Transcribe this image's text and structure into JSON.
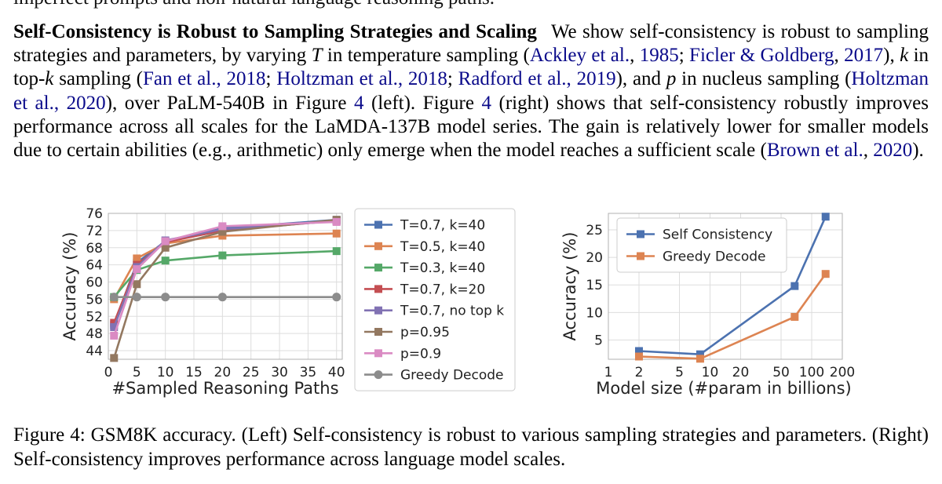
{
  "cut_line": "imperfect prompts and non-natural language reasoning paths.",
  "paragraph": {
    "title": "Self-Consistency is Robust to Sampling Strategies and Scaling",
    "t1": "We show self-consistency is robust to sampling strategies and parameters, by varying ",
    "v_T": "T",
    "t2": " in temperature sampling (",
    "c_ackley": "Ackley et al.",
    "s1": ", ",
    "c_1985": "1985",
    "s2": "; ",
    "c_ficler": "Ficler & Goldberg",
    "s3": ", ",
    "c_2017": "2017",
    "t3": "), ",
    "v_k": "k",
    "t4": " in top-",
    "v_k2": "k",
    "t5": " sampling (",
    "c_fan": "Fan et al., 2018",
    "s4": "; ",
    "c_holtz18": "Holtzman et al., 2018",
    "s5": "; ",
    "c_radford": "Radford et al., 2019",
    "t6": "), and ",
    "v_p": "p",
    "t7": " in nucleus sampling (",
    "c_holtz20": "Holtzman et al., 2020",
    "t8": "), over PaLM-540B in Figure ",
    "c_fig4a": "4",
    "t9": " (left). Figure ",
    "c_fig4b": "4",
    "t10": " (right) shows that self-consistency robustly improves performance across all scales for the LaMDA-137B model series. The gain is relatively lower for smaller models due to certain abilities (e.g., arithmetic) only emerge when the model reaches a sufficient scale (",
    "c_brown": "Brown et al.",
    "s6": ", ",
    "c_2020": "2020",
    "t11": ")."
  },
  "caption": "Figure 4: GSM8K accuracy. (Left) Self-consistency is robust to various sampling strategies and parameters. (Right) Self-consistency improves performance across language model scales.",
  "chart_data": [
    {
      "type": "line",
      "xlabel": "#Sampled Reasoning Paths",
      "ylabel": "Accuracy (%)",
      "xlim": [
        0,
        41
      ],
      "ylim": [
        42,
        76
      ],
      "xticks": [
        0,
        5,
        10,
        15,
        20,
        25,
        30,
        35,
        40
      ],
      "yticks": [
        44,
        48,
        52,
        56,
        60,
        64,
        68,
        72,
        76
      ],
      "x": [
        1,
        5,
        10,
        20,
        40
      ],
      "grid": true,
      "legend": "right",
      "series": [
        {
          "name": "T=0.7, k=40",
          "color": "#4c72b0",
          "values": [
            50.0,
            64.5,
            69.5,
            72.5,
            74.5
          ]
        },
        {
          "name": "T=0.5, k=40",
          "color": "#dd8452",
          "values": [
            56.0,
            65.5,
            69.0,
            70.8,
            71.3
          ]
        },
        {
          "name": "T=0.3, k=40",
          "color": "#55a868",
          "values": [
            56.5,
            62.8,
            65.0,
            66.2,
            67.2
          ]
        },
        {
          "name": "T=0.7, k=20",
          "color": "#c44e52",
          "values": [
            50.5,
            64.0,
            69.3,
            72.0,
            74.3
          ]
        },
        {
          "name": "T=0.7, no top k",
          "color": "#8172b3",
          "values": [
            49.5,
            63.5,
            69.7,
            72.3,
            74.2
          ]
        },
        {
          "name": "p=0.95",
          "color": "#937860",
          "values": [
            42.3,
            59.5,
            68.0,
            71.7,
            74.5
          ]
        },
        {
          "name": "p=0.9",
          "color": "#da8bc3",
          "values": [
            47.5,
            63.0,
            69.5,
            73.0,
            74.0
          ]
        },
        {
          "name": "Greedy Decode",
          "color": "#8c8c8c",
          "values": [
            56.5,
            56.5,
            56.5,
            56.5,
            56.5
          ]
        }
      ]
    },
    {
      "type": "line",
      "xscale": "log",
      "xlabel": "Model size (#param in billions)",
      "ylabel": "Accuracy (%)",
      "xlim": [
        1,
        200
      ],
      "ylim": [
        1.5,
        28
      ],
      "xticks": [
        1,
        2,
        5,
        10,
        20,
        50,
        100,
        200
      ],
      "xtick_labels": [
        "1",
        "2",
        "5",
        "10",
        "20",
        "50",
        "100",
        "200"
      ],
      "yticks": [
        5,
        10,
        15,
        20,
        25
      ],
      "x": [
        2,
        8,
        68,
        137
      ],
      "grid": true,
      "legend": "top-left",
      "series": [
        {
          "name": "Self Consistency",
          "color": "#4c72b0",
          "values": [
            3.0,
            2.4,
            14.8,
            27.4
          ]
        },
        {
          "name": "Greedy Decode",
          "color": "#dd8452",
          "values": [
            2.0,
            1.6,
            9.2,
            17.0
          ]
        }
      ]
    }
  ]
}
